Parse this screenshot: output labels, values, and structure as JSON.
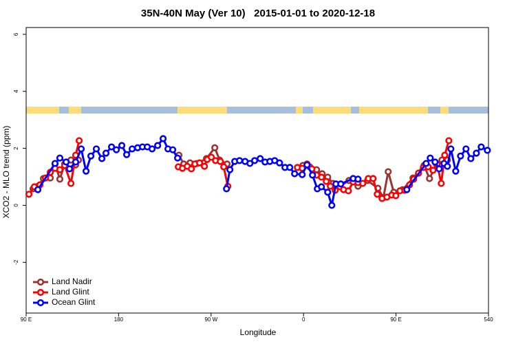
{
  "chart_data": {
    "type": "line",
    "title": "35N-40N May (Ver 10)   2015-01-01 to 2020-12-18",
    "x_label": "Longitude",
    "y_label": "XCO2 - MLO trend (ppm)",
    "xlim": [
      90,
      540
    ],
    "ylim": [
      -3.78,
      6.24
    ],
    "xticks": [
      {
        "value": 90,
        "label": "90 E"
      },
      180,
      {
        "value": 270,
        "label": "90 W"
      },
      {
        "value": 360,
        "label": "0"
      },
      {
        "value": 450,
        "label": "90 E"
      },
      540
    ],
    "yticks": [
      -2,
      0,
      2,
      4,
      6
    ],
    "legend": "bottom-left",
    "series": [
      {
        "name": "Land Nadir",
        "color": "#9e3232",
        "x": [
          96.7,
          101.4,
          106.8,
          113.5,
          118.1,
          122.8,
          127.5,
          133.6,
          138.2,
          140.9,
          null,
          238.7,
          243.4,
          249.5,
          256.2,
          265.5,
          273.6,
          278.3,
          285.6,
          null,
          359.3,
          366.0,
          372.7,
          378.1,
          383.5,
          388.8,
          395.5,
          404.2,
          413.0,
          422.3,
          432.4,
          437.7,
          442.4,
          447.8,
          456.5,
          466.5,
          477.3,
          482.6,
          489.3,
          494.7,
          500.0
        ],
        "values": [
          0.58,
          0.67,
          0.94,
          0.96,
          1.45,
          0.92,
          1.45,
          1.59,
          1.42,
          1.59,
          null,
          1.76,
          1.45,
          1.49,
          1.47,
          1.64,
          2.02,
          1.59,
          1.45,
          null,
          1.4,
          1.35,
          1.25,
          1.11,
          0.99,
          0.77,
          0.67,
          0.87,
          0.67,
          0.87,
          0.6,
          0.27,
          1.18,
          0.46,
          0.55,
          0.96,
          1.4,
          0.94,
          1.45,
          1.59,
          1.59
        ]
      },
      {
        "name": "Land Glint",
        "color": "#ff0000",
        "x": [
          92.7,
          98.0,
          103.4,
          108.8,
          113.5,
          118.1,
          122.8,
          127.5,
          133.6,
          138.2,
          141.6,
          null,
          238.1,
          242.1,
          246.8,
          250.8,
          254.2,
          258.8,
          263.5,
          266.2,
          270.2,
          274.3,
          279.0,
          282.3,
          286.3,
          null,
          354.0,
          358.7,
          363.4,
          368.1,
          372.7,
          377.4,
          382.1,
          386.1,
          390.8,
          395.5,
          398.9,
          403.6,
          408.3,
          413.0,
          417.6,
          423.0,
          427.7,
          431.7,
          436.4,
          441.1,
          445.8,
          449.8,
          453.8,
          458.5,
          463.2,
          467.2,
          471.9,
          476.6,
          481.3,
          486.0,
          490.0,
          494.0,
          497.4,
          501.4
        ],
        "values": [
          0.39,
          0.65,
          0.72,
          0.96,
          1.16,
          1.3,
          1.25,
          1.4,
          0.77,
          1.76,
          2.27,
          null,
          1.35,
          1.3,
          1.37,
          1.28,
          1.45,
          1.49,
          1.37,
          1.61,
          1.69,
          1.57,
          1.54,
          1.35,
          0.67,
          null,
          1.33,
          1.3,
          1.45,
          1.28,
          1.06,
          0.99,
          0.84,
          0.67,
          0.53,
          0.65,
          0.55,
          0.51,
          0.82,
          0.8,
          0.77,
          0.94,
          0.94,
          0.39,
          0.24,
          0.29,
          0.36,
          0.34,
          0.51,
          0.53,
          0.72,
          0.92,
          1.13,
          1.33,
          1.35,
          1.23,
          1.45,
          0.77,
          1.76,
          2.27
        ]
      },
      {
        "name": "Ocean Glint",
        "color": "#0000ff",
        "x": [
          101.4,
          118.1,
          122.8,
          128.9,
          132.2,
          138.2,
          143.6,
          148.3,
          153.0,
          158.3,
          163.7,
          167.7,
          173.1,
          177.8,
          183.1,
          187.8,
          193.2,
          198.5,
          203.2,
          207.9,
          212.6,
          218.0,
          223.3,
          228.0,
          232.7,
          237.4,
          null,
          285.0,
          288.3,
          293.0,
          297.7,
          303.1,
          307.8,
          312.4,
          317.8,
          322.5,
          327.2,
          331.9,
          336.6,
          341.9,
          346.6,
          351.3,
          358.7,
          363.4,
          368.7,
          373.4,
          377.4,
          383.5,
          387.5,
          391.5,
          396.2,
          408.3,
          413.0,
          null,
          460.5,
          479.3,
          483.3,
          488.0,
          492.0,
          496.7,
          500.0,
          503.4,
          508.1,
          512.8,
          518.1,
          522.8,
          528.2,
          532.9,
          538.9
        ],
        "values": [
          0.55,
          1.47,
          1.66,
          1.52,
          1.28,
          1.52,
          1.98,
          1.2,
          1.73,
          1.98,
          1.64,
          1.83,
          2.05,
          1.95,
          2.1,
          1.78,
          1.98,
          2.02,
          2.05,
          2.05,
          1.98,
          2.1,
          2.34,
          1.98,
          1.95,
          1.66,
          null,
          0.58,
          1.25,
          1.54,
          1.57,
          1.54,
          1.47,
          1.57,
          1.64,
          1.52,
          1.54,
          1.57,
          1.49,
          1.33,
          1.33,
          1.11,
          1.08,
          1.42,
          1.06,
          0.58,
          0.65,
          0.46,
          0.0,
          0.75,
          0.75,
          0.94,
          0.92,
          null,
          0.55,
          1.47,
          1.66,
          1.52,
          1.28,
          1.47,
          1.37,
          1.98,
          1.2,
          1.73,
          1.98,
          1.64,
          1.83,
          2.05,
          1.93
        ]
      }
    ]
  }
}
